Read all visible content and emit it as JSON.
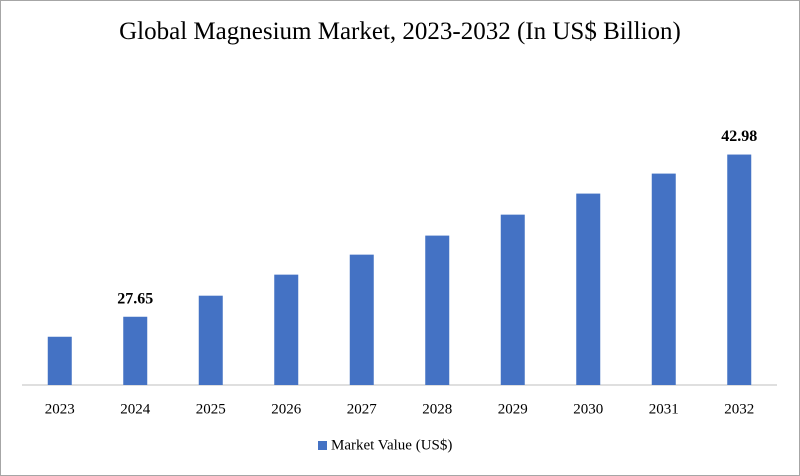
{
  "chart_data": {
    "type": "bar",
    "title": "Global Magnesium Market, 2023-2032 (In US$ Billion)",
    "categories": [
      "2023",
      "2024",
      "2025",
      "2026",
      "2027",
      "2028",
      "2029",
      "2030",
      "2031",
      "2032"
    ],
    "series": [
      {
        "name": "Market Value (US$)",
        "color": "#4472c4",
        "values": [
          25.76,
          27.65,
          29.64,
          31.63,
          33.52,
          35.32,
          37.3,
          39.29,
          41.18,
          42.98
        ],
        "value_labels": [
          null,
          "27.65",
          null,
          null,
          null,
          null,
          null,
          null,
          null,
          "42.98"
        ]
      }
    ],
    "ylim": [
      21.2,
      45.3
    ],
    "legend": "bottom"
  }
}
